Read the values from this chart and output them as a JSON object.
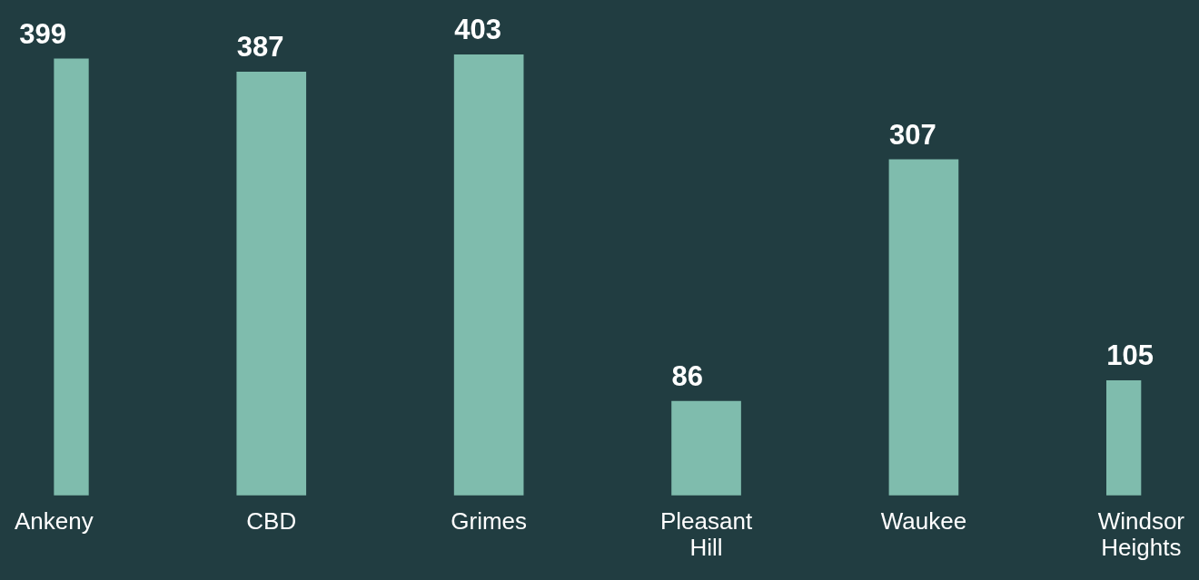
{
  "chart_data": {
    "type": "bar",
    "categories": [
      "Ankeny",
      "CBD",
      "Grimes",
      "Pleasant Hill",
      "Waukee",
      "Windsor Heights"
    ],
    "values": [
      399,
      387,
      403,
      86,
      307,
      105
    ],
    "color": "#7fbcad",
    "data_labels": true,
    "grid": false,
    "legend": false,
    "tick_labels": "x"
  }
}
